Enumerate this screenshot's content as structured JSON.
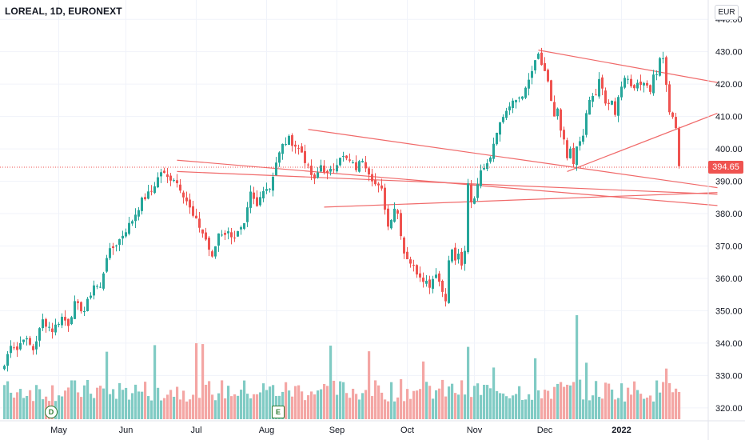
{
  "header": {
    "title": "LOREAL, 1D, EURONEXT",
    "currency": "EUR"
  },
  "last_price_label": "394.65",
  "events": [
    {
      "label": "D",
      "type": "dividend"
    },
    {
      "label": "E",
      "type": "earnings"
    }
  ],
  "colors": {
    "up": "#26a69a",
    "down": "#ef5350",
    "vol_up": "#80cbc4",
    "vol_down": "#f4a6a4",
    "trendline": "#f06a6a",
    "grid": "#f0f3fa"
  },
  "chart_data": {
    "type": "candlestick",
    "x_tick_labels": [
      "May",
      "Jun",
      "Jul",
      "Aug",
      "Sep",
      "Oct",
      "Nov",
      "Dec",
      "2022"
    ],
    "y_tick_labels": [
      "320.00",
      "330.00",
      "340.00",
      "350.00",
      "360.00",
      "370.00",
      "380.00",
      "390.00",
      "400.00",
      "410.00",
      "420.00",
      "430.00",
      "440.00"
    ],
    "ylim": [
      316,
      444
    ],
    "last_price": 394.65,
    "grid": true,
    "months_first_trading_index": {
      "May": 17,
      "Jun": 38,
      "Jul": 60,
      "Aug": 82,
      "Sep": 104,
      "Oct": 126,
      "Nov": 147,
      "Dec": 169,
      "2022": 193
    },
    "close_path": [
      [
        0,
        333
      ],
      [
        2,
        340
      ],
      [
        4,
        338
      ],
      [
        6,
        342
      ],
      [
        9,
        338
      ],
      [
        12,
        347
      ],
      [
        15,
        344
      ],
      [
        18,
        348
      ],
      [
        20,
        346
      ],
      [
        22,
        352
      ],
      [
        25,
        350
      ],
      [
        28,
        358
      ],
      [
        30,
        357
      ],
      [
        32,
        367
      ],
      [
        36,
        372
      ],
      [
        40,
        378
      ],
      [
        43,
        384
      ],
      [
        46,
        387
      ],
      [
        49,
        393
      ],
      [
        51,
        391
      ],
      [
        53,
        391
      ],
      [
        55,
        388
      ],
      [
        57,
        384
      ],
      [
        59,
        379
      ],
      [
        61,
        376
      ],
      [
        63,
        372
      ],
      [
        65,
        366
      ],
      [
        67,
        374
      ],
      [
        70,
        374
      ],
      [
        72,
        373
      ],
      [
        75,
        376
      ],
      [
        77,
        386
      ],
      [
        79,
        382
      ],
      [
        81,
        388
      ],
      [
        83,
        388
      ],
      [
        85,
        396
      ],
      [
        87,
        401
      ],
      [
        89,
        403
      ],
      [
        91,
        401
      ],
      [
        93,
        399
      ],
      [
        95,
        394
      ],
      [
        97,
        390
      ],
      [
        99,
        395
      ],
      [
        101,
        392
      ],
      [
        103,
        394
      ],
      [
        105,
        398
      ],
      [
        108,
        396
      ],
      [
        110,
        394
      ],
      [
        112,
        397
      ],
      [
        114,
        393
      ],
      [
        116,
        389
      ],
      [
        118,
        387
      ],
      [
        119,
        382
      ],
      [
        120,
        376
      ],
      [
        122,
        382
      ],
      [
        123,
        380
      ],
      [
        124,
        374
      ],
      [
        125,
        368
      ],
      [
        127,
        365
      ],
      [
        129,
        362
      ],
      [
        131,
        360
      ],
      [
        133,
        358
      ],
      [
        135,
        362
      ],
      [
        137,
        356
      ],
      [
        138,
        354
      ],
      [
        139,
        365
      ],
      [
        140,
        369
      ],
      [
        141,
        365
      ],
      [
        142,
        368
      ],
      [
        143,
        363
      ],
      [
        144,
        368
      ],
      [
        145,
        389
      ],
      [
        146,
        384
      ],
      [
        147,
        385
      ],
      [
        148,
        390
      ],
      [
        150,
        395
      ],
      [
        152,
        398
      ],
      [
        154,
        406
      ],
      [
        157,
        412
      ],
      [
        160,
        415
      ],
      [
        163,
        418
      ],
      [
        165,
        424
      ],
      [
        167,
        429
      ],
      [
        168,
        426
      ],
      [
        170,
        420
      ],
      [
        171,
        415
      ],
      [
        172,
        410
      ],
      [
        173,
        412
      ],
      [
        174,
        405
      ],
      [
        175,
        402
      ],
      [
        176,
        397
      ],
      [
        177,
        399
      ],
      [
        178,
        395
      ],
      [
        179,
        400
      ],
      [
        181,
        405
      ],
      [
        183,
        415
      ],
      [
        185,
        417
      ],
      [
        186,
        421
      ],
      [
        187,
        418
      ],
      [
        188,
        414
      ],
      [
        190,
        414
      ],
      [
        191,
        410
      ],
      [
        192,
        417
      ],
      [
        194,
        422
      ],
      [
        196,
        419
      ],
      [
        198,
        420
      ],
      [
        200,
        421
      ],
      [
        202,
        418
      ],
      [
        203,
        424
      ],
      [
        204,
        422
      ],
      [
        205,
        428
      ],
      [
        206,
        429
      ],
      [
        207,
        420
      ],
      [
        208,
        412
      ],
      [
        210,
        407
      ],
      [
        211,
        395
      ]
    ],
    "trendlines": [
      {
        "name": "channel-top-nov-dec",
        "points": [
          [
            167,
            430.5
          ],
          [
            223,
            420.5
          ]
        ]
      },
      {
        "name": "channel-bottom-nov-dec",
        "points": [
          [
            176,
            393
          ],
          [
            223,
            411
          ]
        ]
      },
      {
        "name": "wedge-upper",
        "points": [
          [
            95,
            406
          ],
          [
            223,
            388
          ]
        ]
      },
      {
        "name": "wedge-lower",
        "points": [
          [
            100,
            382
          ],
          [
            223,
            386.5
          ]
        ]
      },
      {
        "name": "long-top",
        "points": [
          [
            54,
            396.5
          ],
          [
            223,
            382.5
          ]
        ]
      },
      {
        "name": "long-bottom",
        "points": [
          [
            54,
            393
          ],
          [
            223,
            386
          ]
        ]
      }
    ],
    "volume": {
      "relative_scale": true,
      "max_bar_index": 179
    }
  }
}
